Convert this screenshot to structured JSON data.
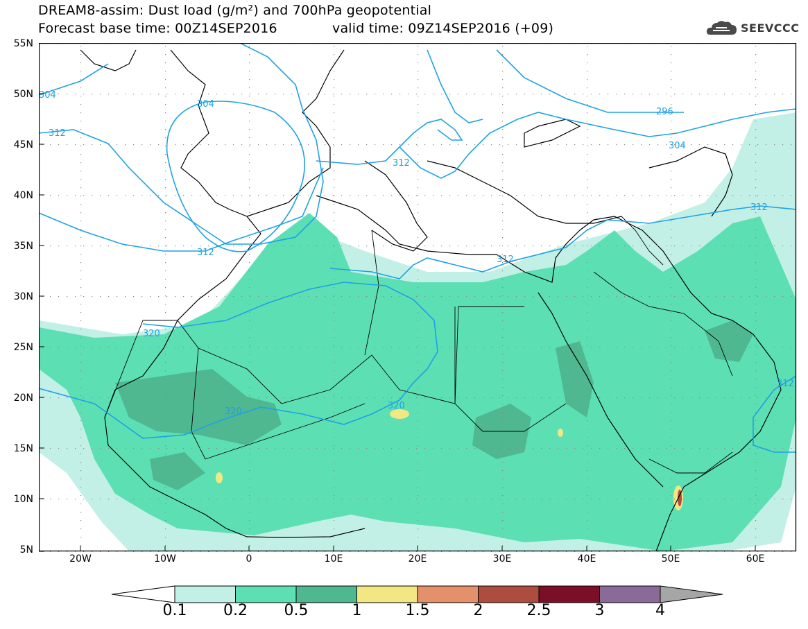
{
  "header": {
    "title_line1": "DREAM8-assim: Dust load (g/m²) and 700hPa geopotential",
    "title_line2_base": "Forecast base time: 00Z14SEP2016",
    "title_line2_valid": "valid time: 09Z14SEP2016 (+09)"
  },
  "logo": {
    "text": "SEEVCCC",
    "icon": "cloud-icon"
  },
  "map": {
    "lat_labels": [
      "55N",
      "50N",
      "45N",
      "40N",
      "35N",
      "30N",
      "25N",
      "20N",
      "15N",
      "10N",
      "5N"
    ],
    "lon_labels": [
      "20W",
      "10W",
      "0",
      "10E",
      "20E",
      "30E",
      "40E",
      "50E",
      "60E"
    ],
    "contour_labels": [
      "304",
      "304",
      "312",
      "312",
      "312",
      "312",
      "320",
      "320",
      "320",
      "296",
      "304",
      "312",
      "312"
    ]
  },
  "colorbar": {
    "colors": [
      "#c3f0e6",
      "#5ddfb4",
      "#4fb890",
      "#f1e883",
      "#e4906b",
      "#ad4d3f",
      "#7b0f28",
      "#8a6a99"
    ],
    "labels": [
      "0.1",
      "0.2",
      "0.5",
      "1",
      "1.5",
      "2",
      "2.5",
      "3",
      "4"
    ]
  }
}
